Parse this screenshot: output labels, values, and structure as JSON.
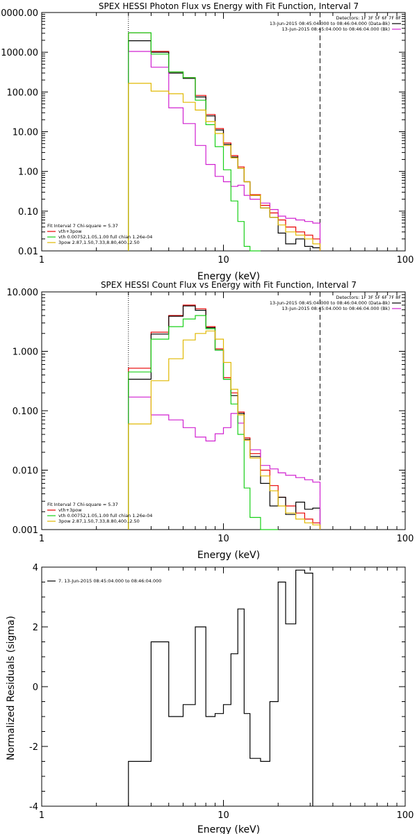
{
  "colors": {
    "black": "#000000",
    "red": "#e80000",
    "green": "#18d018",
    "magenta": "#d020d0",
    "yellow": "#e0b800",
    "total_line": "#000000"
  },
  "chart_data": [
    {
      "type": "line",
      "title": "SPEX HESSI Photon Flux vs Energy with Fit Function, Interval 7",
      "xlabel": "Energy (keV)",
      "ylabel": "",
      "xscale": "log",
      "yscale": "log",
      "xlim": [
        1,
        100
      ],
      "ylim": [
        0.01,
        10000
      ],
      "xticks": [
        {
          "v": 1,
          "label": "1"
        },
        {
          "v": 10,
          "label": "10"
        },
        {
          "v": 100,
          "label": "100"
        }
      ],
      "yticks": [
        {
          "v": 0.01,
          "label": "0.01"
        },
        {
          "v": 0.1,
          "label": "0.10"
        },
        {
          "v": 1,
          "label": "1.00"
        },
        {
          "v": 10,
          "label": "10.00"
        },
        {
          "v": 100,
          "label": "100.00"
        },
        {
          "v": 1000,
          "label": "1000.00"
        },
        {
          "v": 10000,
          "label": "10000.00"
        }
      ],
      "vlines": [
        {
          "x": 3.0,
          "style": "dotted"
        },
        {
          "x": 34,
          "style": "dashed"
        }
      ],
      "bin_edges": [
        3.0,
        4.0,
        5.0,
        6.0,
        7.0,
        8.0,
        9.0,
        10.0,
        11.0,
        12.0,
        13.0,
        14.0,
        16.0,
        18.0,
        20.0,
        22.0,
        25.0,
        28.0,
        31.0,
        34.0
      ],
      "legend_right": [
        {
          "text": "Detectors: 1F 3F 5F 6F 7F 8F",
          "color": "#000000",
          "line": false
        },
        {
          "text": "13-Jun-2015 08:45:04.000 to 08:46:04.000 (Data-Bk)",
          "color": "#000000",
          "line": true
        },
        {
          "text": "13-Jun-2015 08:45:04.000 to 08:46:04.000 (Bk)",
          "color": "#d020d0",
          "line": true
        }
      ],
      "legend_left": [
        {
          "text": "Fit Interval  7   Chi-square = 5.37",
          "color": "#000000",
          "line": false
        },
        {
          "text": "vth+3pow",
          "color": "#e80000",
          "line": true
        },
        {
          "text": "vth 0.00752,1.05,1.00  full chian 1.26e-04",
          "color": "#18d018",
          "line": true
        },
        {
          "text": "3pow  2.87,1.50,7.33,8.80,400.,2.50",
          "color": "#e0b800",
          "line": true
        }
      ],
      "series": [
        {
          "name": "vth+3pow",
          "color": "#e80000",
          "values": [
            3100,
            1050,
            320,
            230,
            82,
            27,
            12,
            5.2,
            2.5,
            1.3,
            0.55,
            0.26,
            0.14,
            0.09,
            0.06,
            0.04,
            0.03,
            0.025,
            0.02
          ]
        },
        {
          "name": "Data-Bk",
          "color": "#000000",
          "values": [
            1950,
            1000,
            300,
            220,
            75,
            25,
            11,
            4.8,
            2.3,
            1.2,
            0.55,
            0.25,
            0.12,
            0.07,
            0.028,
            0.015,
            0.02,
            0.013,
            0.012
          ]
        },
        {
          "name": "Bk",
          "color": "#d020d0",
          "values": [
            1050,
            420,
            40,
            16,
            4.5,
            1.5,
            0.75,
            0.55,
            0.42,
            0.45,
            0.25,
            0.2,
            0.16,
            0.11,
            0.075,
            0.066,
            0.06,
            0.055,
            0.05
          ]
        },
        {
          "name": "vth",
          "color": "#18d018",
          "values": [
            3100,
            900,
            320,
            230,
            62,
            15,
            4.2,
            1.1,
            0.18,
            0.055,
            0.013,
            0.006
          ]
        },
        {
          "name": "3pow",
          "color": "#e0b800",
          "values": [
            165,
            105,
            90,
            55,
            35,
            18,
            9,
            4.5,
            2.2,
            1.2,
            0.55,
            0.25,
            0.12,
            0.07,
            0.045,
            0.03,
            0.025,
            0.02,
            0.015
          ]
        }
      ]
    },
    {
      "type": "line",
      "title": "SPEX HESSI Count Flux vs Energy with Fit Function, Interval 7",
      "xlabel": "Energy (keV)",
      "ylabel": "",
      "xscale": "log",
      "yscale": "log",
      "xlim": [
        1,
        100
      ],
      "ylim": [
        0.001,
        10
      ],
      "xticks": [
        {
          "v": 1,
          "label": "1"
        },
        {
          "v": 10,
          "label": "10"
        },
        {
          "v": 100,
          "label": "100"
        }
      ],
      "yticks": [
        {
          "v": 0.001,
          "label": "0.001"
        },
        {
          "v": 0.01,
          "label": "0.010"
        },
        {
          "v": 0.1,
          "label": "0.100"
        },
        {
          "v": 1,
          "label": "1.000"
        },
        {
          "v": 10,
          "label": "10.000"
        }
      ],
      "vlines": [
        {
          "x": 3.0,
          "style": "dotted"
        },
        {
          "x": 34,
          "style": "dashed"
        }
      ],
      "bin_edges": [
        3.0,
        4.0,
        5.0,
        6.0,
        7.0,
        8.0,
        9.0,
        10.0,
        11.0,
        12.0,
        13.0,
        14.0,
        16.0,
        18.0,
        20.0,
        22.0,
        25.0,
        28.0,
        31.0,
        34.0
      ],
      "legend_right": [
        {
          "text": "Detectors: 1F 3F 5F 6F 7F 8F",
          "color": "#000000",
          "line": false
        },
        {
          "text": "13-Jun-2015 08:45:04.000 to 08:46:04.000 (Data-Bk)",
          "color": "#000000",
          "line": true
        },
        {
          "text": "13-Jun-2015 08:45:04.000 to 08:46:04.000 (Bk)",
          "color": "#d020d0",
          "line": true
        }
      ],
      "legend_left": [
        {
          "text": "Fit Interval  7   Chi-square = 5.37",
          "color": "#000000",
          "line": false
        },
        {
          "text": "vth+3pow",
          "color": "#e80000",
          "line": true
        },
        {
          "text": "vth 0.00752,1.05,1.00  full chian 1.26e-04",
          "color": "#18d018",
          "line": true
        },
        {
          "text": "3pow  2.87,1.50,7.33,8.80,400.,2.50",
          "color": "#e0b800",
          "line": true
        }
      ],
      "series": [
        {
          "name": "vth+3pow",
          "color": "#e80000",
          "values": [
            0.52,
            2.1,
            4.0,
            6.0,
            5.2,
            2.6,
            1.1,
            0.36,
            0.2,
            0.095,
            0.035,
            0.019,
            0.01,
            0.0055,
            0.0035,
            0.0025,
            0.0019,
            0.0015,
            0.0013
          ]
        },
        {
          "name": "Data-Bk",
          "color": "#000000",
          "values": [
            0.34,
            1.95,
            3.9,
            5.8,
            4.9,
            2.5,
            1.05,
            0.34,
            0.18,
            0.09,
            0.033,
            0.017,
            0.006,
            0.0025,
            0.0035,
            0.0018,
            0.0029,
            0.0022,
            0.0023
          ]
        },
        {
          "name": "Bk",
          "color": "#d020d0",
          "values": [
            0.17,
            0.085,
            0.07,
            0.052,
            0.036,
            0.031,
            0.041,
            0.052,
            0.09,
            0.062,
            0.032,
            0.022,
            0.012,
            0.0105,
            0.009,
            0.0082,
            0.0075,
            0.0069,
            0.0063
          ]
        },
        {
          "name": "vth",
          "color": "#18d018",
          "values": [
            0.45,
            1.6,
            2.6,
            3.5,
            4.0,
            2.4,
            1.05,
            0.34,
            0.13,
            0.04,
            0.005,
            0.0016,
            0.0009,
            0.0007
          ]
        },
        {
          "name": "3pow",
          "color": "#e0b800",
          "values": [
            0.06,
            0.32,
            0.75,
            1.55,
            2.0,
            2.2,
            1.6,
            0.65,
            0.23,
            0.085,
            0.032,
            0.016,
            0.008,
            0.0045,
            0.0025,
            0.0019,
            0.0015,
            0.0013,
            0.0012
          ]
        }
      ]
    },
    {
      "type": "line",
      "title": "",
      "xlabel": "Energy (keV)",
      "ylabel": "Normalized Residuals (sigma)",
      "xscale": "log",
      "yscale": "linear",
      "xlim": [
        1,
        100
      ],
      "ylim": [
        -4,
        4
      ],
      "xticks": [
        {
          "v": 1,
          "label": "1"
        },
        {
          "v": 10,
          "label": "10"
        },
        {
          "v": 100,
          "label": "100"
        }
      ],
      "yticks": [
        {
          "v": -4,
          "label": "-4"
        },
        {
          "v": -2,
          "label": "-2"
        },
        {
          "v": 0,
          "label": "0"
        },
        {
          "v": 2,
          "label": "2"
        },
        {
          "v": 4,
          "label": "4"
        }
      ],
      "bin_edges": [
        3.0,
        4.0,
        5.0,
        6.0,
        7.0,
        8.0,
        9.0,
        10.0,
        11.0,
        12.0,
        13.0,
        14.0,
        16.0,
        18.0,
        20.0,
        22.0,
        25.0,
        28.0,
        31.0,
        34.0
      ],
      "legend_left": [
        {
          "text": "7. 13-Jun-2015 08:45:04.000 to 08:46:04.000",
          "color": "#000000",
          "line": true
        }
      ],
      "series": [
        {
          "name": "7. 13-Jun-2015 08:45:04.000 to 08:46:04.000",
          "color": "#000000",
          "values": [
            -2.5,
            1.5,
            -1.0,
            -0.6,
            2.0,
            -1.0,
            -0.9,
            -0.6,
            1.1,
            2.6,
            -0.9,
            -2.4,
            -2.5,
            -0.5,
            3.5,
            2.1,
            3.9,
            3.8
          ]
        }
      ]
    }
  ]
}
